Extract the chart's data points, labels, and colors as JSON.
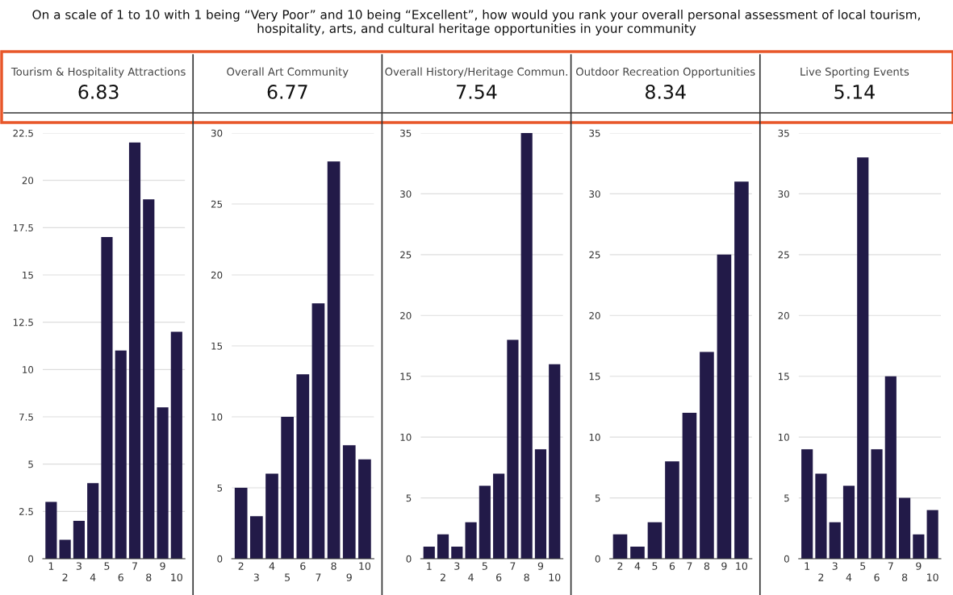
{
  "chart_data": [
    {
      "type": "bar",
      "title": "Tourism & Hospitality Attractions",
      "subtitle": "6.83",
      "annotations": [
        "On a scale of 1 to 10 with 1 being “Very Poor” and 10 being “Excellent”, how would you rank your overall personal assessment of local tourism, hospitality, arts, and cultural heritage opportunities in your community"
      ],
      "categories": [
        "1",
        "2",
        "3",
        "4",
        "5",
        "6",
        "7",
        "8",
        "9",
        "10"
      ],
      "values": [
        3,
        1,
        2,
        4,
        17,
        11,
        22,
        19,
        8,
        12
      ],
      "color": "#221a48",
      "ylim": [
        0,
        22.5
      ],
      "yticks": [
        0,
        2.5,
        5,
        7.5,
        10,
        12.5,
        15,
        17.5,
        20,
        22.5
      ],
      "grid": "y"
    },
    {
      "type": "bar",
      "title": "Overall Art Community",
      "subtitle": "6.77",
      "categories": [
        "2",
        "3",
        "4",
        "5",
        "6",
        "7",
        "8",
        "9",
        "10"
      ],
      "values": [
        5,
        3,
        6,
        10,
        13,
        18,
        28,
        8,
        7
      ],
      "color": "#221a48",
      "ylim": [
        0,
        30
      ],
      "yticks": [
        0,
        5,
        10,
        15,
        20,
        25,
        30
      ],
      "grid": "y"
    },
    {
      "type": "bar",
      "title": "Overall History/Heritage Commun.",
      "subtitle": "7.54",
      "categories": [
        "1",
        "2",
        "3",
        "4",
        "5",
        "6",
        "7",
        "8",
        "9",
        "10"
      ],
      "values": [
        1,
        2,
        1,
        3,
        6,
        7,
        18,
        35,
        9,
        16
      ],
      "color": "#221a48",
      "ylim": [
        0,
        35
      ],
      "yticks": [
        0,
        5,
        10,
        15,
        20,
        25,
        30,
        35
      ],
      "grid": "y"
    },
    {
      "type": "bar",
      "title": "Outdoor Recreation Opportunities",
      "subtitle": "8.34",
      "categories": [
        "2",
        "4",
        "5",
        "6",
        "7",
        "8",
        "9",
        "10"
      ],
      "values": [
        2,
        1,
        3,
        8,
        12,
        17,
        25,
        31
      ],
      "color": "#221a48",
      "ylim": [
        0,
        35
      ],
      "yticks": [
        0,
        5,
        10,
        15,
        20,
        25,
        30,
        35
      ],
      "grid": "y"
    },
    {
      "type": "bar",
      "title": "Live Sporting Events",
      "subtitle": "5.14",
      "categories": [
        "1",
        "2",
        "3",
        "4",
        "5",
        "6",
        "7",
        "8",
        "9",
        "10"
      ],
      "values": [
        9,
        7,
        3,
        6,
        33,
        9,
        15,
        5,
        2,
        4
      ],
      "color": "#221a48",
      "ylim": [
        0,
        35
      ],
      "yticks": [
        0,
        5,
        10,
        15,
        20,
        25,
        30,
        35
      ],
      "grid": "y"
    }
  ]
}
